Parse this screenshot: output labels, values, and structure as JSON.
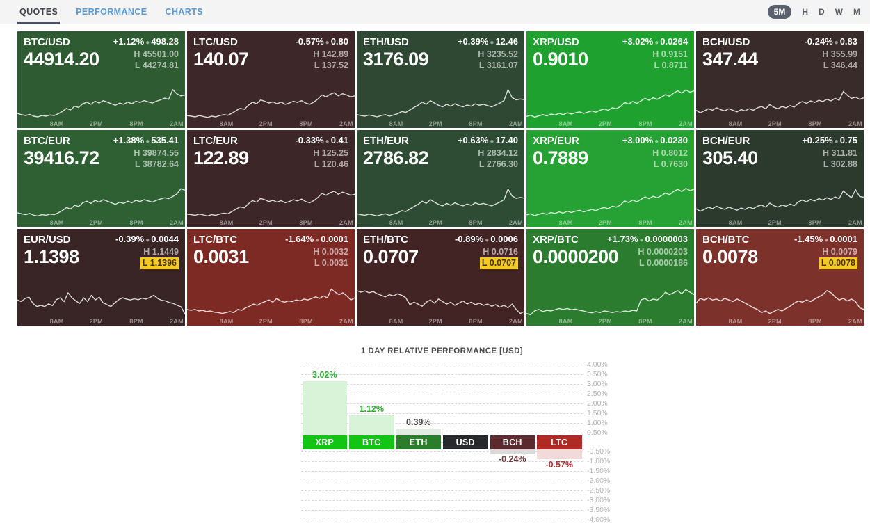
{
  "header": {
    "tabs": [
      {
        "label": "QUOTES",
        "active": true
      },
      {
        "label": "PERFORMANCE",
        "active": false
      },
      {
        "label": "CHARTS",
        "active": false
      }
    ],
    "ranges": [
      {
        "label": "5M",
        "active": true
      },
      {
        "label": "H",
        "active": false
      },
      {
        "label": "D",
        "active": false
      },
      {
        "label": "W",
        "active": false
      },
      {
        "label": "M",
        "active": false
      }
    ]
  },
  "time_labels": [
    "8AM",
    "2PM",
    "8PM",
    "2AM"
  ],
  "tiles": [
    {
      "pair": "BTC/USD",
      "change_pct": "+1.12%",
      "change_abs": "498.28",
      "price": "44914.20",
      "high_label": "H",
      "low_label": "L",
      "high": "45501.00",
      "low": "44274.81",
      "low_highlight": false,
      "bg": "#2e5b31",
      "spark": [
        0.2,
        0.16,
        0.13,
        0.17,
        0.11,
        0.09,
        0.13,
        0.11,
        0.15,
        0.13,
        0.19,
        0.26,
        0.36,
        0.31,
        0.43,
        0.39,
        0.51,
        0.56,
        0.49,
        0.59,
        0.53,
        0.61,
        0.56,
        0.51,
        0.46,
        0.53,
        0.49,
        0.56,
        0.51,
        0.59,
        0.55,
        0.61,
        0.57,
        0.53,
        0.59,
        0.63,
        0.69,
        0.65,
        0.96,
        0.83,
        0.76,
        0.79
      ]
    },
    {
      "pair": "LTC/USD",
      "change_pct": "-0.57%",
      "change_abs": "0.80",
      "price": "140.07",
      "high_label": "H",
      "low_label": "L",
      "high": "142.89",
      "low": "137.52",
      "low_highlight": false,
      "bg": "#3e2728",
      "spark": [
        0.13,
        0.11,
        0.09,
        0.13,
        0.1,
        0.07,
        0.11,
        0.09,
        0.13,
        0.16,
        0.14,
        0.21,
        0.29,
        0.36,
        0.33,
        0.46,
        0.56,
        0.51,
        0.63,
        0.59,
        0.53,
        0.57,
        0.51,
        0.56,
        0.49,
        0.53,
        0.59,
        0.55,
        0.61,
        0.53,
        0.49,
        0.56,
        0.66,
        0.79,
        0.73,
        0.81,
        0.86,
        0.76,
        0.83,
        0.79,
        0.73,
        0.76
      ]
    },
    {
      "pair": "ETH/USD",
      "change_pct": "+0.39%",
      "change_abs": "12.46",
      "price": "3176.09",
      "high_label": "H",
      "low_label": "L",
      "high": "3235.52",
      "low": "3161.07",
      "low_highlight": false,
      "bg": "#2e4833",
      "spark": [
        0.16,
        0.13,
        0.11,
        0.15,
        0.12,
        0.09,
        0.13,
        0.16,
        0.11,
        0.15,
        0.19,
        0.26,
        0.23,
        0.31,
        0.39,
        0.46,
        0.56,
        0.49,
        0.61,
        0.53,
        0.46,
        0.41,
        0.49,
        0.43,
        0.51,
        0.45,
        0.41,
        0.47,
        0.43,
        0.51,
        0.46,
        0.49,
        0.45,
        0.41,
        0.47,
        0.53,
        0.61,
        0.96,
        0.71,
        0.63,
        0.66,
        0.64
      ]
    },
    {
      "pair": "XRP/USD",
      "change_pct": "+3.02%",
      "change_abs": "0.0264",
      "price": "0.9010",
      "high_label": "H",
      "low_label": "L",
      "high": "0.9151",
      "low": "0.8711",
      "low_highlight": false,
      "bg": "#1ea12f",
      "spark": [
        0.1,
        0.14,
        0.08,
        0.12,
        0.16,
        0.12,
        0.18,
        0.15,
        0.2,
        0.16,
        0.22,
        0.18,
        0.22,
        0.25,
        0.2,
        0.24,
        0.28,
        0.24,
        0.3,
        0.34,
        0.3,
        0.38,
        0.35,
        0.42,
        0.55,
        0.5,
        0.58,
        0.52,
        0.6,
        0.68,
        0.62,
        0.7,
        0.65,
        0.72,
        0.8,
        0.75,
        0.85,
        0.92,
        0.85,
        0.95,
        0.88,
        0.92
      ]
    },
    {
      "pair": "BCH/USD",
      "change_pct": "-0.24%",
      "change_abs": "0.83",
      "price": "347.44",
      "high_label": "H",
      "low_label": "L",
      "high": "355.99",
      "low": "346.44",
      "low_highlight": false,
      "bg": "#392b29",
      "spark": [
        0.3,
        0.22,
        0.28,
        0.35,
        0.3,
        0.38,
        0.32,
        0.28,
        0.35,
        0.3,
        0.25,
        0.32,
        0.28,
        0.35,
        0.3,
        0.38,
        0.42,
        0.35,
        0.48,
        0.4,
        0.35,
        0.42,
        0.38,
        0.45,
        0.4,
        0.52,
        0.58,
        0.52,
        0.6,
        0.55,
        0.62,
        0.58,
        0.65,
        0.6,
        0.68,
        0.62,
        0.9,
        0.78,
        0.68,
        0.72,
        0.65,
        0.7
      ]
    },
    {
      "pair": "BTC/EUR",
      "change_pct": "+1.38%",
      "change_abs": "535.41",
      "price": "39416.72",
      "high_label": "H",
      "low_label": "L",
      "high": "39874.55",
      "low": "38782.64",
      "low_highlight": false,
      "bg": "#2e6034",
      "spark": [
        0.18,
        0.15,
        0.12,
        0.16,
        0.1,
        0.08,
        0.12,
        0.1,
        0.14,
        0.12,
        0.18,
        0.25,
        0.35,
        0.3,
        0.42,
        0.38,
        0.5,
        0.55,
        0.48,
        0.58,
        0.52,
        0.6,
        0.55,
        0.5,
        0.45,
        0.52,
        0.48,
        0.55,
        0.5,
        0.58,
        0.54,
        0.6,
        0.56,
        0.52,
        0.58,
        0.62,
        0.66,
        0.63,
        0.7,
        0.78,
        0.95,
        0.9
      ]
    },
    {
      "pair": "LTC/EUR",
      "change_pct": "-0.33%",
      "change_abs": "0.41",
      "price": "122.89",
      "high_label": "H",
      "low_label": "L",
      "high": "125.25",
      "low": "120.46",
      "low_highlight": false,
      "bg": "#3c2627",
      "spark": [
        0.14,
        0.12,
        0.1,
        0.14,
        0.11,
        0.08,
        0.12,
        0.1,
        0.14,
        0.17,
        0.15,
        0.22,
        0.3,
        0.37,
        0.34,
        0.47,
        0.57,
        0.52,
        0.64,
        0.6,
        0.54,
        0.58,
        0.52,
        0.57,
        0.5,
        0.54,
        0.6,
        0.56,
        0.62,
        0.54,
        0.5,
        0.57,
        0.67,
        0.8,
        0.74,
        0.82,
        0.87,
        0.77,
        0.84,
        0.8,
        0.74,
        0.77
      ]
    },
    {
      "pair": "ETH/EUR",
      "change_pct": "+0.63%",
      "change_abs": "17.40",
      "price": "2786.82",
      "high_label": "H",
      "low_label": "L",
      "high": "2834.12",
      "low": "2766.30",
      "low_highlight": false,
      "bg": "#2e4c34",
      "spark": [
        0.15,
        0.12,
        0.1,
        0.14,
        0.11,
        0.08,
        0.12,
        0.15,
        0.1,
        0.14,
        0.18,
        0.25,
        0.22,
        0.3,
        0.38,
        0.45,
        0.55,
        0.48,
        0.6,
        0.52,
        0.45,
        0.4,
        0.48,
        0.42,
        0.5,
        0.44,
        0.4,
        0.46,
        0.42,
        0.5,
        0.45,
        0.48,
        0.44,
        0.4,
        0.46,
        0.52,
        0.6,
        0.94,
        0.72,
        0.64,
        0.67,
        0.65
      ]
    },
    {
      "pair": "XRP/EUR",
      "change_pct": "+3.00%",
      "change_abs": "0.0230",
      "price": "0.7889",
      "high_label": "H",
      "low_label": "L",
      "high": "0.8012",
      "low": "0.7630",
      "low_highlight": false,
      "bg": "#26a133",
      "spark": [
        0.11,
        0.15,
        0.09,
        0.13,
        0.17,
        0.13,
        0.19,
        0.16,
        0.21,
        0.17,
        0.23,
        0.19,
        0.23,
        0.26,
        0.21,
        0.25,
        0.29,
        0.25,
        0.31,
        0.35,
        0.31,
        0.39,
        0.36,
        0.43,
        0.56,
        0.51,
        0.59,
        0.53,
        0.61,
        0.69,
        0.63,
        0.71,
        0.66,
        0.73,
        0.81,
        0.76,
        0.86,
        0.93,
        0.86,
        0.96,
        0.89,
        0.93
      ]
    },
    {
      "pair": "BCH/EUR",
      "change_pct": "+0.25%",
      "change_abs": "0.75",
      "price": "305.40",
      "high_label": "H",
      "low_label": "L",
      "high": "311.81",
      "low": "302.88",
      "low_highlight": false,
      "bg": "#2c3a2e",
      "spark": [
        0.31,
        0.23,
        0.29,
        0.36,
        0.31,
        0.39,
        0.33,
        0.29,
        0.36,
        0.31,
        0.26,
        0.33,
        0.29,
        0.36,
        0.31,
        0.39,
        0.43,
        0.36,
        0.49,
        0.41,
        0.36,
        0.43,
        0.39,
        0.46,
        0.41,
        0.53,
        0.59,
        0.53,
        0.61,
        0.56,
        0.63,
        0.59,
        0.66,
        0.61,
        0.69,
        0.63,
        0.88,
        0.76,
        0.66,
        0.92,
        0.7,
        0.68
      ]
    },
    {
      "pair": "EUR/USD",
      "change_pct": "-0.39%",
      "change_abs": "0.0044",
      "price": "1.1398",
      "high_label": "H",
      "low_label": "L",
      "high": "1.1449",
      "low": "1.1396",
      "low_highlight": true,
      "bg": "#3a2526",
      "spark": [
        0.55,
        0.5,
        0.6,
        0.64,
        0.44,
        0.34,
        0.38,
        0.34,
        0.43,
        0.37,
        0.56,
        0.62,
        0.5,
        0.78,
        0.62,
        0.52,
        0.44,
        0.62,
        0.5,
        0.7,
        0.55,
        0.64,
        0.46,
        0.4,
        0.34,
        0.46,
        0.56,
        0.62,
        0.58,
        0.55,
        0.59,
        0.56,
        0.61,
        0.58,
        0.63,
        0.7,
        0.6,
        0.54,
        0.52,
        0.47,
        0.44,
        0.38,
        0.33,
        0.1
      ]
    },
    {
      "pair": "LTC/BTC",
      "change_pct": "-1.64%",
      "change_abs": "0.0001",
      "price": "0.0031",
      "high_label": "H",
      "low_label": "L",
      "high": "0.0032",
      "low": "0.0031",
      "low_highlight": false,
      "bg": "#7d2a24",
      "spark": [
        0.25,
        0.22,
        0.25,
        0.2,
        0.22,
        0.18,
        0.2,
        0.16,
        0.15,
        0.12,
        0.15,
        0.18,
        0.15,
        0.25,
        0.22,
        0.3,
        0.35,
        0.42,
        0.38,
        0.45,
        0.5,
        0.55,
        0.48,
        0.6,
        0.52,
        0.48,
        0.52,
        0.5,
        0.55,
        0.52,
        0.58,
        0.55,
        0.6,
        0.65,
        0.6,
        0.68,
        0.62,
        0.9,
        0.8,
        0.72,
        0.78,
        0.68,
        0.55,
        0.62
      ]
    },
    {
      "pair": "ETH/BTC",
      "change_pct": "-0.89%",
      "change_abs": "0.0006",
      "price": "0.0707",
      "high_label": "H",
      "low_label": "L",
      "high": "0.0716",
      "low": "0.0707",
      "low_highlight": true,
      "bg": "#432425",
      "spark": [
        0.85,
        0.8,
        0.84,
        0.78,
        0.82,
        0.75,
        0.7,
        0.65,
        0.72,
        0.68,
        0.75,
        0.7,
        0.62,
        0.4,
        0.48,
        0.42,
        0.35,
        0.48,
        0.55,
        0.45,
        0.58,
        0.5,
        0.42,
        0.48,
        0.38,
        0.45,
        0.52,
        0.42,
        0.48,
        0.4,
        0.45,
        0.38,
        0.42,
        0.35,
        0.4,
        0.32,
        0.38,
        0.3,
        0.42,
        0.25,
        0.12,
        0.18
      ]
    },
    {
      "pair": "XRP/BTC",
      "change_pct": "+1.73%",
      "change_abs": "0.0000003",
      "price": "0.0000200",
      "high_label": "H",
      "low_label": "L",
      "high": "0.0000203",
      "low": "0.0000186",
      "low_highlight": false,
      "bg": "#2b7c2f",
      "spark": [
        0.12,
        0.08,
        0.2,
        0.25,
        0.18,
        0.22,
        0.2,
        0.24,
        0.28,
        0.25,
        0.28,
        0.24,
        0.26,
        0.22,
        0.2,
        0.16,
        0.14,
        0.18,
        0.15,
        0.2,
        0.18,
        0.15,
        0.18,
        0.16,
        0.2,
        0.18,
        0.22,
        0.2,
        0.55,
        0.6,
        0.52,
        0.58,
        0.55,
        0.65,
        0.8,
        0.72,
        0.78,
        0.85,
        0.75,
        0.88,
        0.8,
        0.72
      ]
    },
    {
      "pair": "BCH/BTC",
      "change_pct": "-1.45%",
      "change_abs": "0.0001",
      "price": "0.0078",
      "high_label": "H",
      "low_label": "L",
      "high": "0.0079",
      "low": "0.0078",
      "low_highlight": true,
      "bg": "#7c312b",
      "spark": [
        0.45,
        0.6,
        0.55,
        0.62,
        0.55,
        0.58,
        0.52,
        0.6,
        0.55,
        0.5,
        0.58,
        0.52,
        0.45,
        0.38,
        0.3,
        0.25,
        0.15,
        0.2,
        0.12,
        0.18,
        0.25,
        0.2,
        0.28,
        0.35,
        0.45,
        0.52,
        0.48,
        0.55,
        0.5,
        0.58,
        0.65,
        0.72,
        0.85,
        0.78,
        0.65,
        0.55,
        0.6,
        0.52,
        0.58,
        0.5,
        0.3,
        0.25
      ]
    }
  ],
  "chart_data": {
    "type": "bar",
    "title": "1 DAY RELATIVE PERFORMANCE  [USD]",
    "categories": [
      "XRP",
      "BTC",
      "ETH",
      "USD",
      "BCH",
      "LTC"
    ],
    "values": [
      3.02,
      1.12,
      0.39,
      0,
      -0.24,
      -0.57
    ],
    "value_labels": [
      "3.02%",
      "1.12%",
      "0.39%",
      "",
      "-0.24%",
      "-0.57%"
    ],
    "label_colors": [
      "#14c414",
      "#14c414",
      "#2a7d2a",
      "#26282b",
      "#5a2a2e",
      "#b02a25"
    ],
    "bar_colors": [
      "#d9f3d9",
      "#d9f3d9",
      "#e2ece2",
      "transparent",
      "#ded9d9",
      "#f3dada"
    ],
    "value_text_colors": [
      "#2fae2f",
      "#2fae2f",
      "#454545",
      "",
      "#6d3c3c",
      "#b53030"
    ],
    "ylabel": "",
    "xlabel": "",
    "ylim": [
      -4,
      4
    ],
    "ytick_step": 0.5,
    "grid": "dashed",
    "legend": "none"
  }
}
